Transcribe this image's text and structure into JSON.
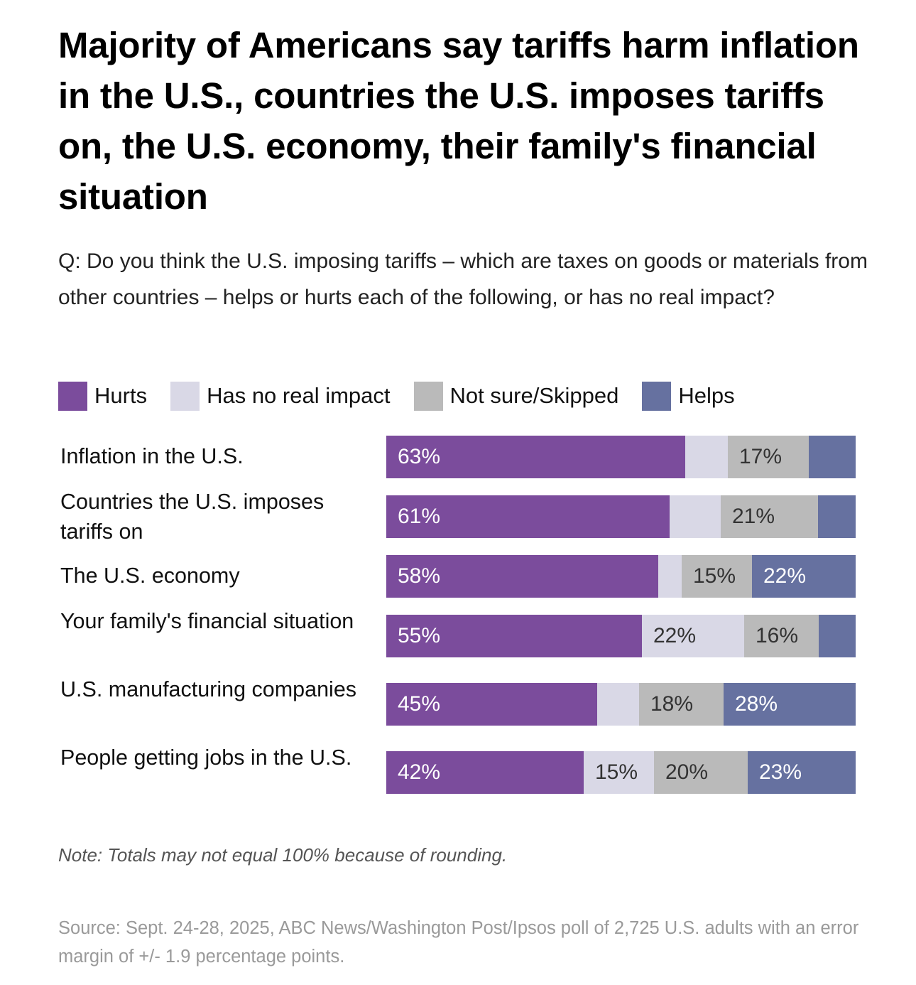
{
  "chart_data": {
    "type": "bar",
    "orientation": "horizontal",
    "stacked": true,
    "title": "Majority of Americans say tariffs harm inflation in the U.S., countries the U.S. imposes tariffs on, the U.S. economy, their family's financial situation",
    "subtitle": "Q: Do you think the U.S. imposing tariffs – which are taxes on goods or materials from other countries – helps or hurts each of the following, or has no real impact?",
    "categories": [
      "Inflation in the U.S.",
      "Countries the U.S. imposes tariffs on",
      "The U.S. economy",
      "Your family's financial situation",
      "U.S. manufacturing companies",
      "People getting jobs in the U.S."
    ],
    "series": [
      {
        "name": "Hurts",
        "color": "#7b4c9c",
        "text_color": "#ffffff",
        "values": [
          63,
          61,
          58,
          55,
          45,
          42
        ],
        "labels": [
          "63%",
          "61%",
          "58%",
          "55%",
          "45%",
          "42%"
        ]
      },
      {
        "name": "Has no real impact",
        "color": "#d9d8e6",
        "text_color": "#333333",
        "values": [
          9,
          11,
          5,
          22,
          9,
          15
        ],
        "labels": [
          "",
          "",
          "",
          "22%",
          "",
          "15%"
        ]
      },
      {
        "name": "Not sure/Skipped",
        "color": "#bababa",
        "text_color": "#333333",
        "values": [
          17,
          21,
          15,
          16,
          18,
          20
        ],
        "labels": [
          "17%",
          "21%",
          "15%",
          "16%",
          "18%",
          "20%"
        ]
      },
      {
        "name": "Helps",
        "color": "#6671a0",
        "text_color": "#ffffff",
        "values": [
          10,
          8,
          22,
          8,
          28,
          23
        ],
        "labels": [
          "",
          "",
          "22%",
          "",
          "28%",
          "23%"
        ]
      }
    ],
    "xlim": [
      0,
      100
    ],
    "legend_position": "top-left",
    "grid": false,
    "note": "Note: Totals may not equal 100% because of rounding.",
    "source": "Source: Sept. 24-28, 2025, ABC News/Washington Post/Ipsos poll of 2,725 U.S. adults with an error margin of +/- 1.9 percentage points."
  }
}
